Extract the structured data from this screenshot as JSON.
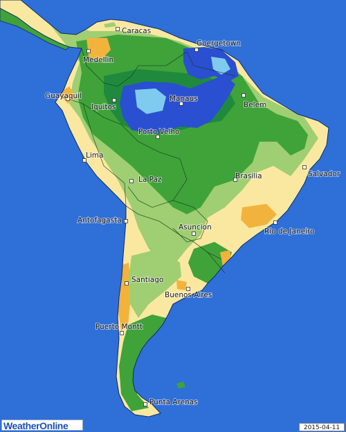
{
  "map": {
    "title": "",
    "brand": "WeatherOnline",
    "date": "2015-04-11",
    "colors": {
      "ocean": "#2f6fd8",
      "very_dry": "#f2b33d",
      "dry": "#fbe8a0",
      "moderate": "#9fcf72",
      "wet": "#3fa33a",
      "very_wet": "#1f8a3e",
      "flooded": "#2a4fd0",
      "extreme": "#7ecbef"
    },
    "cities": [
      {
        "id": "caracas",
        "name": "Caracas"
      },
      {
        "id": "goergetown",
        "name": "Goergetown"
      },
      {
        "id": "medellin",
        "name": "Medellin"
      },
      {
        "id": "guayaquil",
        "name": "Guayaquil"
      },
      {
        "id": "iquitos",
        "name": "Iquitos"
      },
      {
        "id": "manaus",
        "name": "Manaus"
      },
      {
        "id": "belem",
        "name": "Belem"
      },
      {
        "id": "porto-velho",
        "name": "Porto Velho"
      },
      {
        "id": "salvador",
        "name": "Salvador"
      },
      {
        "id": "lima",
        "name": "Lima"
      },
      {
        "id": "la-paz",
        "name": "La Paz"
      },
      {
        "id": "brasilia",
        "name": "Brasilia"
      },
      {
        "id": "antofagasta",
        "name": "Antofagasta"
      },
      {
        "id": "asuncion",
        "name": "Asuncion"
      },
      {
        "id": "rio-de-janeiro",
        "name": "Rio de Janeiro"
      },
      {
        "id": "santiago",
        "name": "Santiago"
      },
      {
        "id": "buenos-aires",
        "name": "Buenos Aires"
      },
      {
        "id": "puerto-montt",
        "name": "Puerto Montt"
      },
      {
        "id": "punta-arenas",
        "name": "Punta Arenas"
      }
    ]
  }
}
